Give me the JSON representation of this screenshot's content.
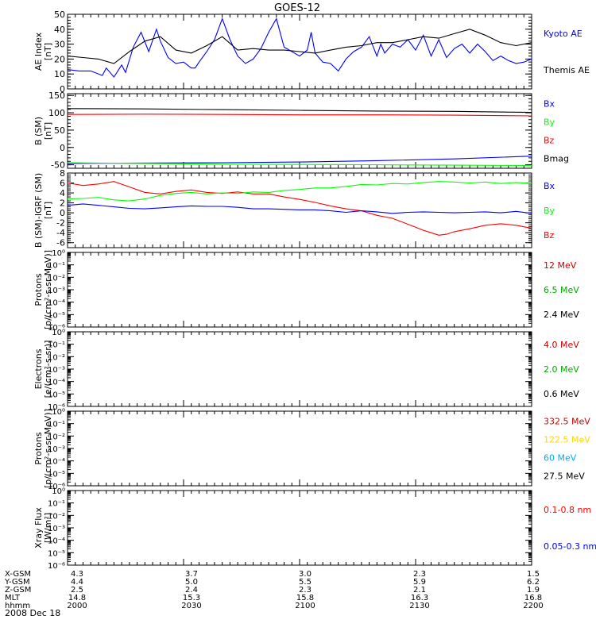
{
  "figure": {
    "title": "GOES-12",
    "date": "2008 Dec 18"
  },
  "colors": {
    "black": "#000000",
    "blue": "#0000ff",
    "red": "#ff0000",
    "green": "#00ff00",
    "dark_red": "#cc0000",
    "yellow": "#ffd700",
    "cyan": "#00aaff",
    "dark_green": "#00aa00"
  },
  "ephemeris": {
    "rows": [
      {
        "label": "X-GSM",
        "values": [
          "4.3",
          "3.7",
          "3.0",
          "2.3",
          "1.5"
        ]
      },
      {
        "label": "Y-GSM",
        "values": [
          "4.4",
          "5.0",
          "5.5",
          "5.9",
          "6.2"
        ]
      },
      {
        "label": "Z-GSM",
        "values": [
          "2.5",
          "2.4",
          "2.3",
          "2.1",
          "1.9"
        ]
      },
      {
        "label": "MLT",
        "values": [
          "14.8",
          "15.3",
          "15.8",
          "16.3",
          "16.8"
        ]
      },
      {
        "label": "hhmm",
        "values": [
          "2000",
          "2030",
          "2100",
          "2130",
          "2200"
        ]
      }
    ]
  },
  "chart_data": [
    {
      "type": "line",
      "ylabel": "AE Index",
      "yunit": "[nT]",
      "ylim": [
        0,
        50
      ],
      "yticks": [
        "0",
        "10",
        "20",
        "30",
        "40",
        "50"
      ],
      "legend": [
        {
          "label": "Kyoto AE",
          "color": "#0000ff"
        },
        {
          "label": "Themis AE",
          "color": "#000000"
        }
      ],
      "series": [
        {
          "name": "Kyoto AE",
          "color": "#0000ff",
          "x": [
            0,
            3,
            6,
            9,
            10,
            12,
            14,
            15,
            17,
            19,
            21,
            23,
            24,
            26,
            28,
            30,
            32,
            33,
            34,
            36,
            38,
            40,
            42,
            44,
            46,
            48,
            50,
            52,
            54,
            56,
            58,
            60,
            62,
            63,
            64,
            66,
            68,
            70,
            72,
            74,
            76,
            78,
            80,
            81,
            82,
            84,
            86,
            88,
            90,
            92,
            94,
            96,
            98,
            100,
            102,
            104,
            106,
            108,
            110,
            112,
            114,
            116,
            118,
            120
          ],
          "y": [
            13,
            12,
            12,
            9,
            14,
            8,
            16,
            11,
            28,
            38,
            25,
            40,
            32,
            21,
            17,
            18,
            14,
            14,
            18,
            25,
            33,
            47,
            33,
            22,
            17,
            20,
            27,
            38,
            47,
            28,
            25,
            22,
            26,
            38,
            24,
            18,
            17,
            12,
            20,
            25,
            28,
            35,
            22,
            30,
            24,
            30,
            28,
            33,
            26,
            36,
            22,
            33,
            21,
            27,
            30,
            24,
            30,
            25,
            19,
            22,
            19,
            17,
            18,
            20
          ]
        },
        {
          "name": "Themis AE",
          "color": "#000000",
          "x": [
            0,
            4,
            8,
            12,
            16,
            20,
            24,
            28,
            32,
            36,
            40,
            44,
            48,
            52,
            56,
            60,
            64,
            68,
            72,
            76,
            80,
            84,
            88,
            92,
            96,
            100,
            104,
            108,
            112,
            116,
            120
          ],
          "y": [
            22,
            21,
            20,
            17,
            25,
            32,
            35,
            26,
            24,
            29,
            35,
            26,
            27,
            26,
            26,
            25,
            24,
            26,
            28,
            29,
            31,
            31,
            33,
            35,
            34,
            37,
            40,
            36,
            31,
            29,
            31
          ]
        }
      ]
    },
    {
      "type": "line",
      "ylabel": "B (SM)",
      "yunit": "[nT]",
      "ylim": [
        -60,
        155
      ],
      "yticks": [
        "-50",
        "0",
        "50",
        "100",
        "150"
      ],
      "legend": [
        {
          "label": "Bx",
          "color": "#0000ff"
        },
        {
          "label": "By",
          "color": "#00ff00"
        },
        {
          "label": "Bz",
          "color": "#ff0000"
        },
        {
          "label": "Bmag",
          "color": "#000000"
        }
      ],
      "series": [
        {
          "name": "Bmag",
          "color": "#000000",
          "x": [
            0,
            20,
            40,
            60,
            80,
            100,
            120
          ],
          "y": [
            112,
            111,
            109,
            107,
            105,
            104,
            101
          ]
        },
        {
          "name": "Bz",
          "color": "#ff0000",
          "x": [
            0,
            20,
            40,
            60,
            80,
            100,
            120
          ],
          "y": [
            95,
            96,
            95,
            94,
            94,
            93,
            91
          ]
        },
        {
          "name": "Bx",
          "color": "#0000ff",
          "x": [
            0,
            20,
            40,
            60,
            80,
            100,
            120
          ],
          "y": [
            -46,
            -45,
            -44,
            -42,
            -38,
            -33,
            -25
          ]
        },
        {
          "name": "By",
          "color": "#00ff00",
          "x": [
            0,
            20,
            40,
            60,
            80,
            100,
            120
          ],
          "y": [
            -44,
            -46,
            -48,
            -49,
            -50,
            -51,
            -52
          ]
        }
      ]
    },
    {
      "type": "line",
      "ylabel": "B (SM)-IGRF (SM)",
      "yunit": "[nT]",
      "ylim": [
        -7,
        8
      ],
      "yticks": [
        "-6",
        "-4",
        "-2",
        "0",
        "2",
        "4",
        "6",
        "8"
      ],
      "legend": [
        {
          "label": "Bx",
          "color": "#0000ff"
        },
        {
          "label": "By",
          "color": "#00ff00"
        },
        {
          "label": "Bz",
          "color": "#ff0000"
        }
      ],
      "series": [
        {
          "name": "Bz",
          "color": "#ff0000",
          "x": [
            0,
            4,
            8,
            12,
            16,
            20,
            24,
            28,
            32,
            36,
            40,
            44,
            48,
            52,
            56,
            60,
            64,
            68,
            72,
            76,
            80,
            84,
            88,
            90,
            92,
            94,
            96,
            98,
            100,
            104,
            108,
            112,
            116,
            120
          ],
          "y": [
            6,
            5.5,
            5.8,
            6.3,
            5.2,
            4.1,
            3.8,
            4.3,
            4.6,
            4.1,
            3.9,
            4.2,
            3.8,
            3.8,
            3.2,
            2.7,
            2.1,
            1.4,
            0.8,
            0.4,
            -0.5,
            -1.1,
            -2.3,
            -2.9,
            -3.5,
            -4.0,
            -4.5,
            -4.3,
            -3.8,
            -3.2,
            -2.5,
            -2.2,
            -2.5,
            -3.1
          ]
        },
        {
          "name": "By",
          "color": "#00ff00",
          "x": [
            0,
            4,
            8,
            12,
            16,
            20,
            24,
            28,
            32,
            36,
            40,
            44,
            48,
            52,
            56,
            60,
            64,
            68,
            72,
            76,
            80,
            84,
            88,
            92,
            96,
            100,
            104,
            108,
            112,
            116,
            120
          ],
          "y": [
            2.8,
            2.9,
            3.1,
            2.6,
            2.4,
            2.8,
            3.5,
            3.9,
            4.1,
            3.8,
            4.0,
            3.9,
            4.2,
            4.1,
            4.5,
            4.7,
            5.0,
            5.0,
            5.3,
            5.7,
            5.6,
            5.9,
            5.8,
            6.1,
            6.3,
            6.2,
            6.0,
            6.2,
            5.9,
            6.1,
            5.9
          ]
        },
        {
          "name": "Bx",
          "color": "#0000ff",
          "x": [
            0,
            4,
            8,
            12,
            16,
            20,
            24,
            28,
            32,
            36,
            40,
            44,
            48,
            52,
            56,
            60,
            64,
            68,
            72,
            76,
            80,
            84,
            88,
            92,
            96,
            100,
            104,
            108,
            112,
            116,
            120
          ],
          "y": [
            1.5,
            1.8,
            1.5,
            1.2,
            0.9,
            0.8,
            1.0,
            1.2,
            1.4,
            1.3,
            1.3,
            1.1,
            0.8,
            0.8,
            0.7,
            0.6,
            0.6,
            0.4,
            0.1,
            0.4,
            0.2,
            -0.1,
            0.1,
            0.2,
            0.1,
            0.0,
            0.1,
            0.2,
            0.0,
            0.3,
            -0.1
          ]
        }
      ]
    },
    {
      "type": "line",
      "ylabel": "Protons",
      "yunit": "[p/(cm²-s-sr-MeV)]",
      "ylim": [
        -6,
        0
      ],
      "log_scale": true,
      "yticks": [
        "10⁰",
        "10⁻¹",
        "10⁻²",
        "10⁻³",
        "10⁻⁴",
        "10⁻⁵",
        "10⁻⁶"
      ],
      "legend": [
        {
          "label": "12 MeV",
          "color": "#cc0000"
        },
        {
          "label": "6.5 MeV",
          "color": "#00aa00"
        },
        {
          "label": "2.4 MeV",
          "color": "#000000"
        }
      ],
      "series": []
    },
    {
      "type": "line",
      "ylabel": "Electrons",
      "yunit": "[e/(cm²-s-sr)]",
      "ylim": [
        -6,
        0
      ],
      "log_scale": true,
      "yticks": [
        "10⁰",
        "10⁻¹",
        "10⁻²",
        "10⁻³",
        "10⁻⁴",
        "10⁻⁵",
        "10⁻⁶"
      ],
      "legend": [
        {
          "label": "4.0 MeV",
          "color": "#cc0000"
        },
        {
          "label": "2.0 MeV",
          "color": "#00aa00"
        },
        {
          "label": "0.6 MeV",
          "color": "#000000"
        }
      ],
      "series": []
    },
    {
      "type": "line",
      "ylabel": "Protons",
      "yunit": "[p/(cm²-s-sr-MeV)]",
      "ylim": [
        -6,
        0
      ],
      "log_scale": true,
      "yticks": [
        "10⁰",
        "10⁻¹",
        "10⁻²",
        "10⁻³",
        "10⁻⁴",
        "10⁻⁵",
        "10⁻⁶"
      ],
      "legend": [
        {
          "label": "332.5 MeV",
          "color": "#cc0000"
        },
        {
          "label": "122.5 MeV",
          "color": "#ffd700"
        },
        {
          "label": "60 MeV",
          "color": "#00aaff"
        },
        {
          "label": "27.5 MeV",
          "color": "#000000"
        }
      ],
      "series": []
    },
    {
      "type": "line",
      "ylabel": "Xray Flux",
      "yunit": "[W/m²]",
      "ylim": [
        -6,
        0
      ],
      "log_scale": true,
      "yticks": [
        "10⁰",
        "10⁻¹",
        "10⁻²",
        "10⁻³",
        "10⁻⁴",
        "10⁻⁵",
        "10⁻⁶"
      ],
      "legend": [
        {
          "label": "0.1-0.8 nm",
          "color": "#ff0000"
        },
        {
          "label": "0.05-0.3 nm",
          "color": "#0000ff"
        }
      ],
      "series": []
    }
  ]
}
